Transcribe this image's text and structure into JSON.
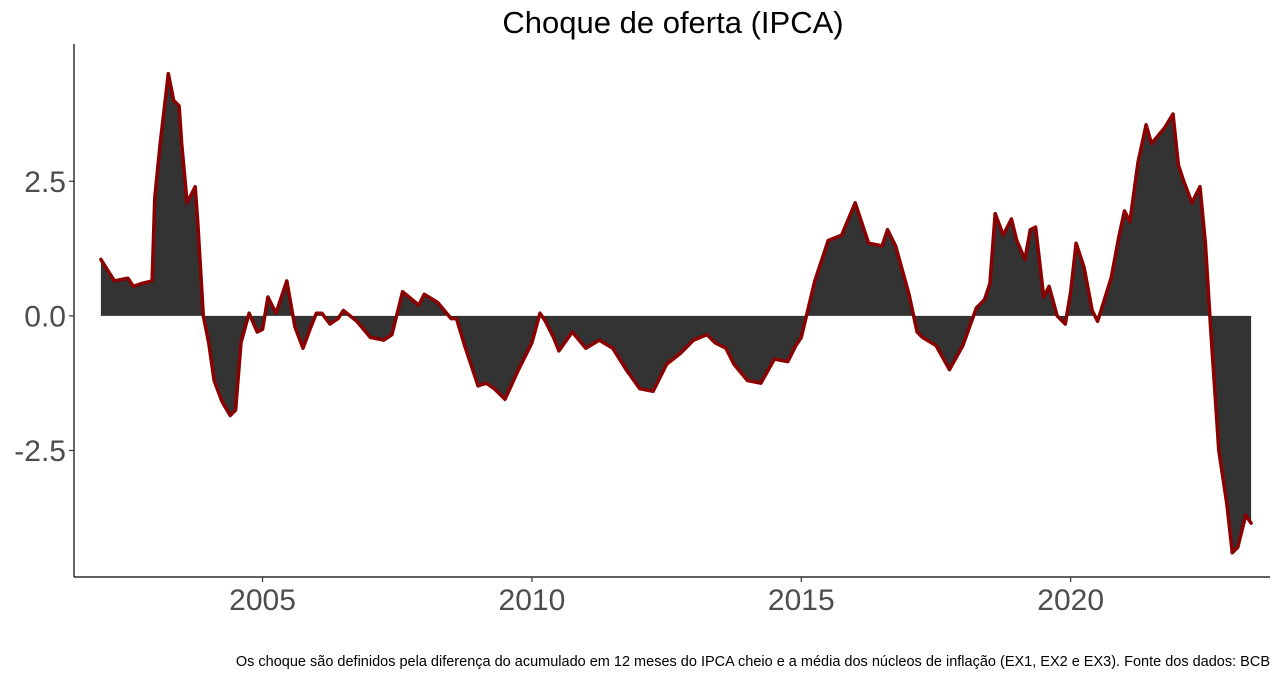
{
  "chart_data": {
    "type": "area",
    "title": "Choque de oferta (IPCA)",
    "xlabel": "",
    "ylabel": "",
    "xlim": [
      2001.5,
      2023.7
    ],
    "ylim": [
      -4.85,
      5.05
    ],
    "x_ticks": [
      2005,
      2010,
      2015,
      2020
    ],
    "x_tick_labels": [
      "2005",
      "2010",
      "2015",
      "2020"
    ],
    "y_ticks": [
      -2.5,
      0.0,
      2.5
    ],
    "y_tick_labels": [
      "-2.5",
      "0.0",
      "2.5"
    ],
    "grid": false,
    "colors": {
      "fill": "#333333",
      "line": "#8b0000",
      "axis": "#000000"
    },
    "series": [
      {
        "name": "Choque de oferta",
        "x": [
          2002.0,
          2002.25,
          2002.5,
          2002.6,
          2002.75,
          2002.95,
          2003.0,
          2003.1,
          2003.25,
          2003.35,
          2003.45,
          2003.5,
          2003.6,
          2003.75,
          2003.8,
          2003.9,
          2004.0,
          2004.1,
          2004.25,
          2004.4,
          2004.5,
          2004.6,
          2004.75,
          2004.9,
          2005.0,
          2005.1,
          2005.25,
          2005.45,
          2005.6,
          2005.75,
          2005.9,
          2006.0,
          2006.1,
          2006.25,
          2006.4,
          2006.5,
          2006.75,
          2007.0,
          2007.25,
          2007.4,
          2007.6,
          2007.9,
          2008.0,
          2008.25,
          2008.5,
          2008.6,
          2008.75,
          2009.0,
          2009.15,
          2009.3,
          2009.5,
          2009.75,
          2010.0,
          2010.15,
          2010.25,
          2010.4,
          2010.5,
          2010.75,
          2011.0,
          2011.25,
          2011.5,
          2011.75,
          2012.0,
          2012.25,
          2012.5,
          2012.75,
          2013.0,
          2013.25,
          2013.4,
          2013.6,
          2013.75,
          2014.0,
          2014.25,
          2014.5,
          2014.75,
          2014.9,
          2015.0,
          2015.25,
          2015.5,
          2015.75,
          2016.0,
          2016.25,
          2016.5,
          2016.6,
          2016.75,
          2017.0,
          2017.15,
          2017.25,
          2017.5,
          2017.75,
          2018.0,
          2018.25,
          2018.4,
          2018.5,
          2018.6,
          2018.75,
          2018.9,
          2019.0,
          2019.15,
          2019.25,
          2019.35,
          2019.5,
          2019.6,
          2019.75,
          2019.9,
          2020.0,
          2020.1,
          2020.25,
          2020.4,
          2020.5,
          2020.75,
          2020.9,
          2021.0,
          2021.1,
          2021.25,
          2021.4,
          2021.5,
          2021.75,
          2021.9,
          2022.0,
          2022.1,
          2022.25,
          2022.4,
          2022.5,
          2022.6,
          2022.75,
          2022.9,
          2023.0,
          2023.1,
          2023.25,
          2023.35
        ],
        "values": [
          1.05,
          0.65,
          0.7,
          0.55,
          0.6,
          0.65,
          2.2,
          3.2,
          4.5,
          4.0,
          3.9,
          3.2,
          2.1,
          2.4,
          1.7,
          0.0,
          -0.5,
          -1.2,
          -1.6,
          -1.85,
          -1.75,
          -0.5,
          0.05,
          -0.3,
          -0.25,
          0.35,
          0.05,
          0.65,
          -0.2,
          -0.6,
          -0.2,
          0.05,
          0.05,
          -0.15,
          -0.05,
          0.1,
          -0.1,
          -0.4,
          -0.45,
          -0.35,
          0.45,
          0.2,
          0.4,
          0.25,
          -0.05,
          -0.05,
          -0.55,
          -1.3,
          -1.25,
          -1.35,
          -1.55,
          -1.0,
          -0.5,
          0.05,
          -0.1,
          -0.4,
          -0.65,
          -0.3,
          -0.6,
          -0.45,
          -0.6,
          -1.0,
          -1.35,
          -1.4,
          -0.9,
          -0.7,
          -0.45,
          -0.35,
          -0.5,
          -0.6,
          -0.9,
          -1.2,
          -1.25,
          -0.8,
          -0.85,
          -0.55,
          -0.4,
          0.65,
          1.4,
          1.5,
          2.1,
          1.35,
          1.3,
          1.6,
          1.3,
          0.4,
          -0.3,
          -0.4,
          -0.55,
          -1.0,
          -0.55,
          0.15,
          0.3,
          0.6,
          1.9,
          1.5,
          1.8,
          1.4,
          1.05,
          1.6,
          1.65,
          0.35,
          0.55,
          0.0,
          -0.15,
          0.45,
          1.35,
          0.9,
          0.1,
          -0.1,
          0.7,
          1.5,
          1.95,
          1.75,
          2.85,
          3.55,
          3.2,
          3.5,
          3.75,
          2.8,
          2.5,
          2.1,
          2.4,
          1.35,
          -0.25,
          -2.5,
          -3.5,
          -4.4,
          -4.3,
          -3.7,
          -3.85
        ]
      }
    ]
  },
  "caption": "Os choque são definidos pela diferença do acumulado em 12 meses do IPCA cheio e a média dos núcleos de inflação (EX1, EX2 e EX3). Fonte dos dados: BCB"
}
